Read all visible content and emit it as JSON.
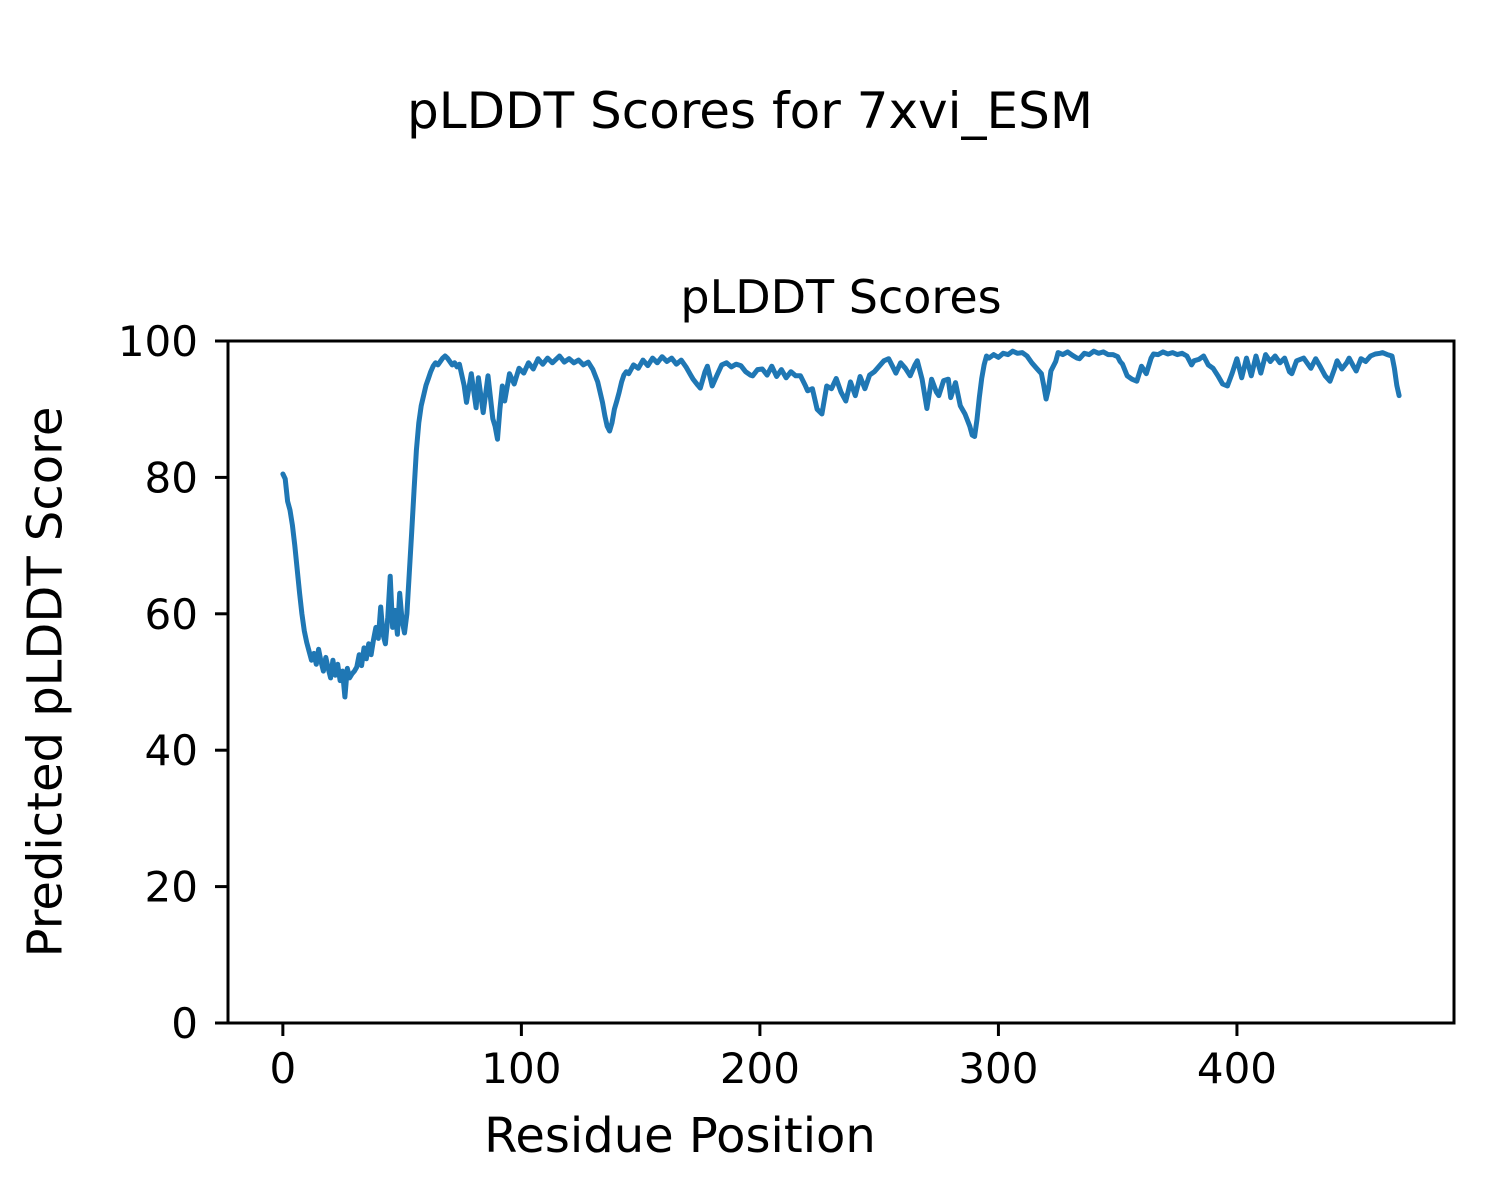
{
  "figure": {
    "suptitle": "pLDDT Scores for 7xvi_ESM"
  },
  "chart_data": {
    "type": "line",
    "title": "pLDDT Scores",
    "xlabel": "Residue Position",
    "ylabel": "Predicted pLDDT Score",
    "xlim": [
      -23,
      491
    ],
    "ylim": [
      0,
      100
    ],
    "xticks": [
      0,
      100,
      200,
      300,
      400
    ],
    "yticks": [
      0,
      20,
      40,
      60,
      80,
      100
    ],
    "grid": false,
    "legend_position": "none",
    "line_color": "#1f77b4",
    "series": [
      {
        "name": "pLDDT",
        "x": [
          0,
          1,
          2,
          3,
          4,
          5,
          6,
          7,
          8,
          9,
          10,
          11,
          12,
          13,
          14,
          15,
          16,
          17,
          18,
          19,
          20,
          21,
          22,
          23,
          24,
          25,
          26,
          27,
          28,
          29,
          30,
          31,
          32,
          33,
          34,
          35,
          36,
          37,
          38,
          39,
          40,
          41,
          42,
          43,
          44,
          45,
          46,
          47,
          48,
          49,
          50,
          51,
          52,
          53,
          54,
          55,
          56,
          57,
          58,
          59,
          60,
          61,
          62,
          63,
          64,
          65,
          66,
          67,
          68,
          69,
          70,
          71,
          72,
          73,
          74,
          75,
          76,
          77,
          79,
          81,
          82,
          84,
          86,
          88,
          89,
          90,
          91,
          92,
          93,
          95,
          97,
          99,
          101,
          103,
          105,
          107,
          109,
          111,
          113,
          116,
          118,
          120,
          122,
          124,
          126,
          128,
          130,
          132,
          134,
          135,
          136,
          137,
          138,
          139,
          140,
          141,
          142,
          143,
          144,
          145,
          147,
          149,
          151,
          153,
          155,
          157,
          159,
          161,
          163,
          165,
          167,
          169,
          171,
          172,
          174,
          175,
          177,
          178,
          180,
          182,
          184,
          186,
          188,
          190,
          192,
          194,
          196,
          197,
          199,
          201,
          203,
          205,
          207,
          209,
          211,
          213,
          215,
          217,
          219,
          220,
          222,
          224,
          226,
          228,
          230,
          232,
          234,
          236,
          238,
          240,
          242,
          244,
          246,
          248,
          250,
          252,
          254,
          256,
          257,
          259,
          261,
          263,
          265,
          266,
          268,
          270,
          272,
          274,
          275,
          277,
          279,
          280,
          282,
          284,
          286,
          288,
          289,
          290,
          291,
          292,
          293,
          294,
          295,
          296,
          298,
          300,
          302,
          304,
          306,
          308,
          310,
          312,
          314,
          316,
          318,
          319,
          320,
          321,
          322,
          324,
          325,
          327,
          329,
          331,
          333,
          334,
          336,
          338,
          340,
          342,
          344,
          346,
          348,
          350,
          351,
          352,
          354,
          356,
          358,
          360,
          362,
          364,
          365,
          367,
          369,
          371,
          373,
          375,
          377,
          379,
          381,
          382,
          384,
          386,
          388,
          390,
          392,
          394,
          396,
          398,
          400,
          402,
          404,
          406,
          408,
          410,
          412,
          414,
          416,
          418,
          420,
          422,
          423,
          425,
          428,
          430,
          431,
          433,
          435,
          437,
          439,
          441,
          442,
          444,
          446,
          447,
          449,
          450,
          452,
          454,
          456,
          458,
          460,
          461,
          463,
          464,
          465,
          466,
          467,
          468
        ],
        "y": [
          80.5,
          79.8,
          76.5,
          75.2,
          73,
          70,
          66.5,
          63,
          60,
          57.5,
          55.8,
          54.5,
          53.2,
          54.2,
          52.6,
          54.8,
          53,
          51.6,
          53.6,
          52,
          50.6,
          53.2,
          51,
          52.6,
          50.2,
          51.6,
          47.8,
          52,
          50.6,
          51.2,
          51.6,
          52.2,
          54,
          52.4,
          55,
          53.4,
          55.6,
          54,
          56.2,
          58,
          56.4,
          61,
          57,
          55.6,
          59.5,
          65.5,
          58,
          60.5,
          57,
          63,
          59,
          57.2,
          60,
          66,
          72,
          78,
          84,
          88,
          90.5,
          92,
          93.5,
          94.5,
          95.5,
          96.3,
          96.8,
          96.5,
          97,
          97.5,
          97.8,
          97.5,
          97,
          96.5,
          96.8,
          96.2,
          96.6,
          95,
          93.5,
          91,
          95.2,
          90.2,
          94.6,
          89.5,
          94.9,
          88.6,
          87.5,
          85.6,
          90,
          93.4,
          91.2,
          95.2,
          93.7,
          96,
          95.3,
          96.8,
          95.9,
          97.4,
          96.6,
          97.5,
          96.8,
          97.8,
          96.9,
          97.4,
          96.8,
          97.2,
          96.5,
          96.9,
          95.8,
          94,
          91,
          89,
          87.5,
          86.8,
          88,
          90,
          91.2,
          92.5,
          94,
          95,
          95.5,
          95.2,
          96.5,
          96,
          97.2,
          96.4,
          97.5,
          96.8,
          97.7,
          97,
          97.5,
          96.6,
          97.2,
          96.2,
          95,
          94.4,
          93.5,
          93.1,
          95.5,
          96.3,
          93.4,
          95,
          96.5,
          96.8,
          96.2,
          96.6,
          96.4,
          95.5,
          95,
          94.9,
          95.8,
          95.9,
          95,
          96.3,
          94.8,
          95.8,
          94.6,
          95.5,
          94.9,
          94.9,
          93.5,
          92.7,
          93,
          90,
          89.3,
          93.4,
          93,
          94.5,
          92.5,
          91.2,
          94,
          92,
          94.8,
          93,
          95,
          95.5,
          96.3,
          97.1,
          97.4,
          96,
          95.3,
          96.8,
          96,
          94.9,
          96.5,
          97.1,
          94.4,
          90.1,
          94.4,
          92.5,
          92,
          94.2,
          94.4,
          91.7,
          93.9,
          90.5,
          89.3,
          87.5,
          86.2,
          86,
          88.5,
          91.7,
          94.5,
          96.5,
          97.8,
          97.5,
          98,
          97.6,
          98.2,
          98,
          98.5,
          98.2,
          98.3,
          97.8,
          96.8,
          96,
          95.2,
          93.5,
          91.5,
          93,
          95.6,
          97,
          98.3,
          98,
          98.4,
          97.9,
          97.5,
          97.4,
          98.2,
          98,
          98.5,
          98.2,
          98.4,
          98,
          98,
          97.7,
          97,
          96.6,
          94.9,
          94.4,
          94.1,
          96.3,
          95.2,
          97.5,
          98.1,
          98,
          98.4,
          98.1,
          98.3,
          98,
          98.2,
          97.8,
          96.5,
          97.1,
          97.3,
          97.8,
          96.5,
          96,
          94.9,
          93.7,
          93.4,
          95.3,
          97.4,
          94.6,
          97.5,
          94.9,
          97.8,
          95.3,
          98,
          97,
          97.8,
          96.8,
          97.5,
          95.5,
          95.2,
          97.1,
          97.5,
          96.5,
          96,
          97.4,
          96.2,
          94.9,
          94.1,
          96,
          97.1,
          95.9,
          96.8,
          97.5,
          96.2,
          95.6,
          97.4,
          97,
          97.8,
          98.1,
          98.2,
          98.3,
          98,
          97.9,
          97.8,
          96,
          93.5,
          92
        ]
      }
    ]
  }
}
